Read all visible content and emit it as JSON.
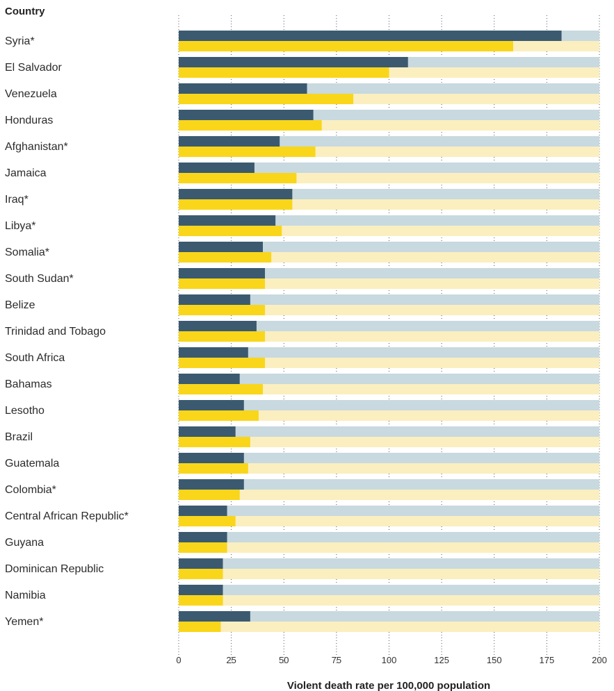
{
  "chart_data": {
    "type": "bar",
    "orientation": "horizontal",
    "ylabel": "Country",
    "xlabel": "Violent death rate per 100,000 population",
    "xlim": [
      0,
      200
    ],
    "xticks": [
      0,
      25,
      50,
      75,
      100,
      125,
      150,
      175,
      200
    ],
    "grid": "vertical dotted",
    "categories": [
      "Syria*",
      "El Salvador",
      "Venezuela",
      "Honduras",
      "Afghanistan*",
      "Jamaica",
      "Iraq*",
      "Libya*",
      "Somalia*",
      "South Sudan*",
      "Belize",
      "Trinidad and Tobago",
      "South Africa",
      "Bahamas",
      "Lesotho",
      "Brazil",
      "Guatemala",
      "Colombia*",
      "Central African Republic*",
      "Guyana",
      "Dominican Republic",
      "Namibia",
      "Yemen*"
    ],
    "series": [
      {
        "color": "#3b5a70",
        "track_color": "#c8d9df",
        "values": [
          182,
          109,
          61,
          64,
          48,
          36,
          54,
          46,
          40,
          41,
          34,
          37,
          33,
          29,
          31,
          27,
          31,
          31,
          23,
          23,
          21,
          21,
          34
        ]
      },
      {
        "color": "#f9d61a",
        "track_color": "#fbefc0",
        "values": [
          159,
          100,
          83,
          68,
          65,
          56,
          54,
          49,
          44,
          41,
          41,
          41,
          41,
          40,
          38,
          34,
          33,
          29,
          27,
          23,
          21,
          21,
          20
        ]
      }
    ]
  }
}
